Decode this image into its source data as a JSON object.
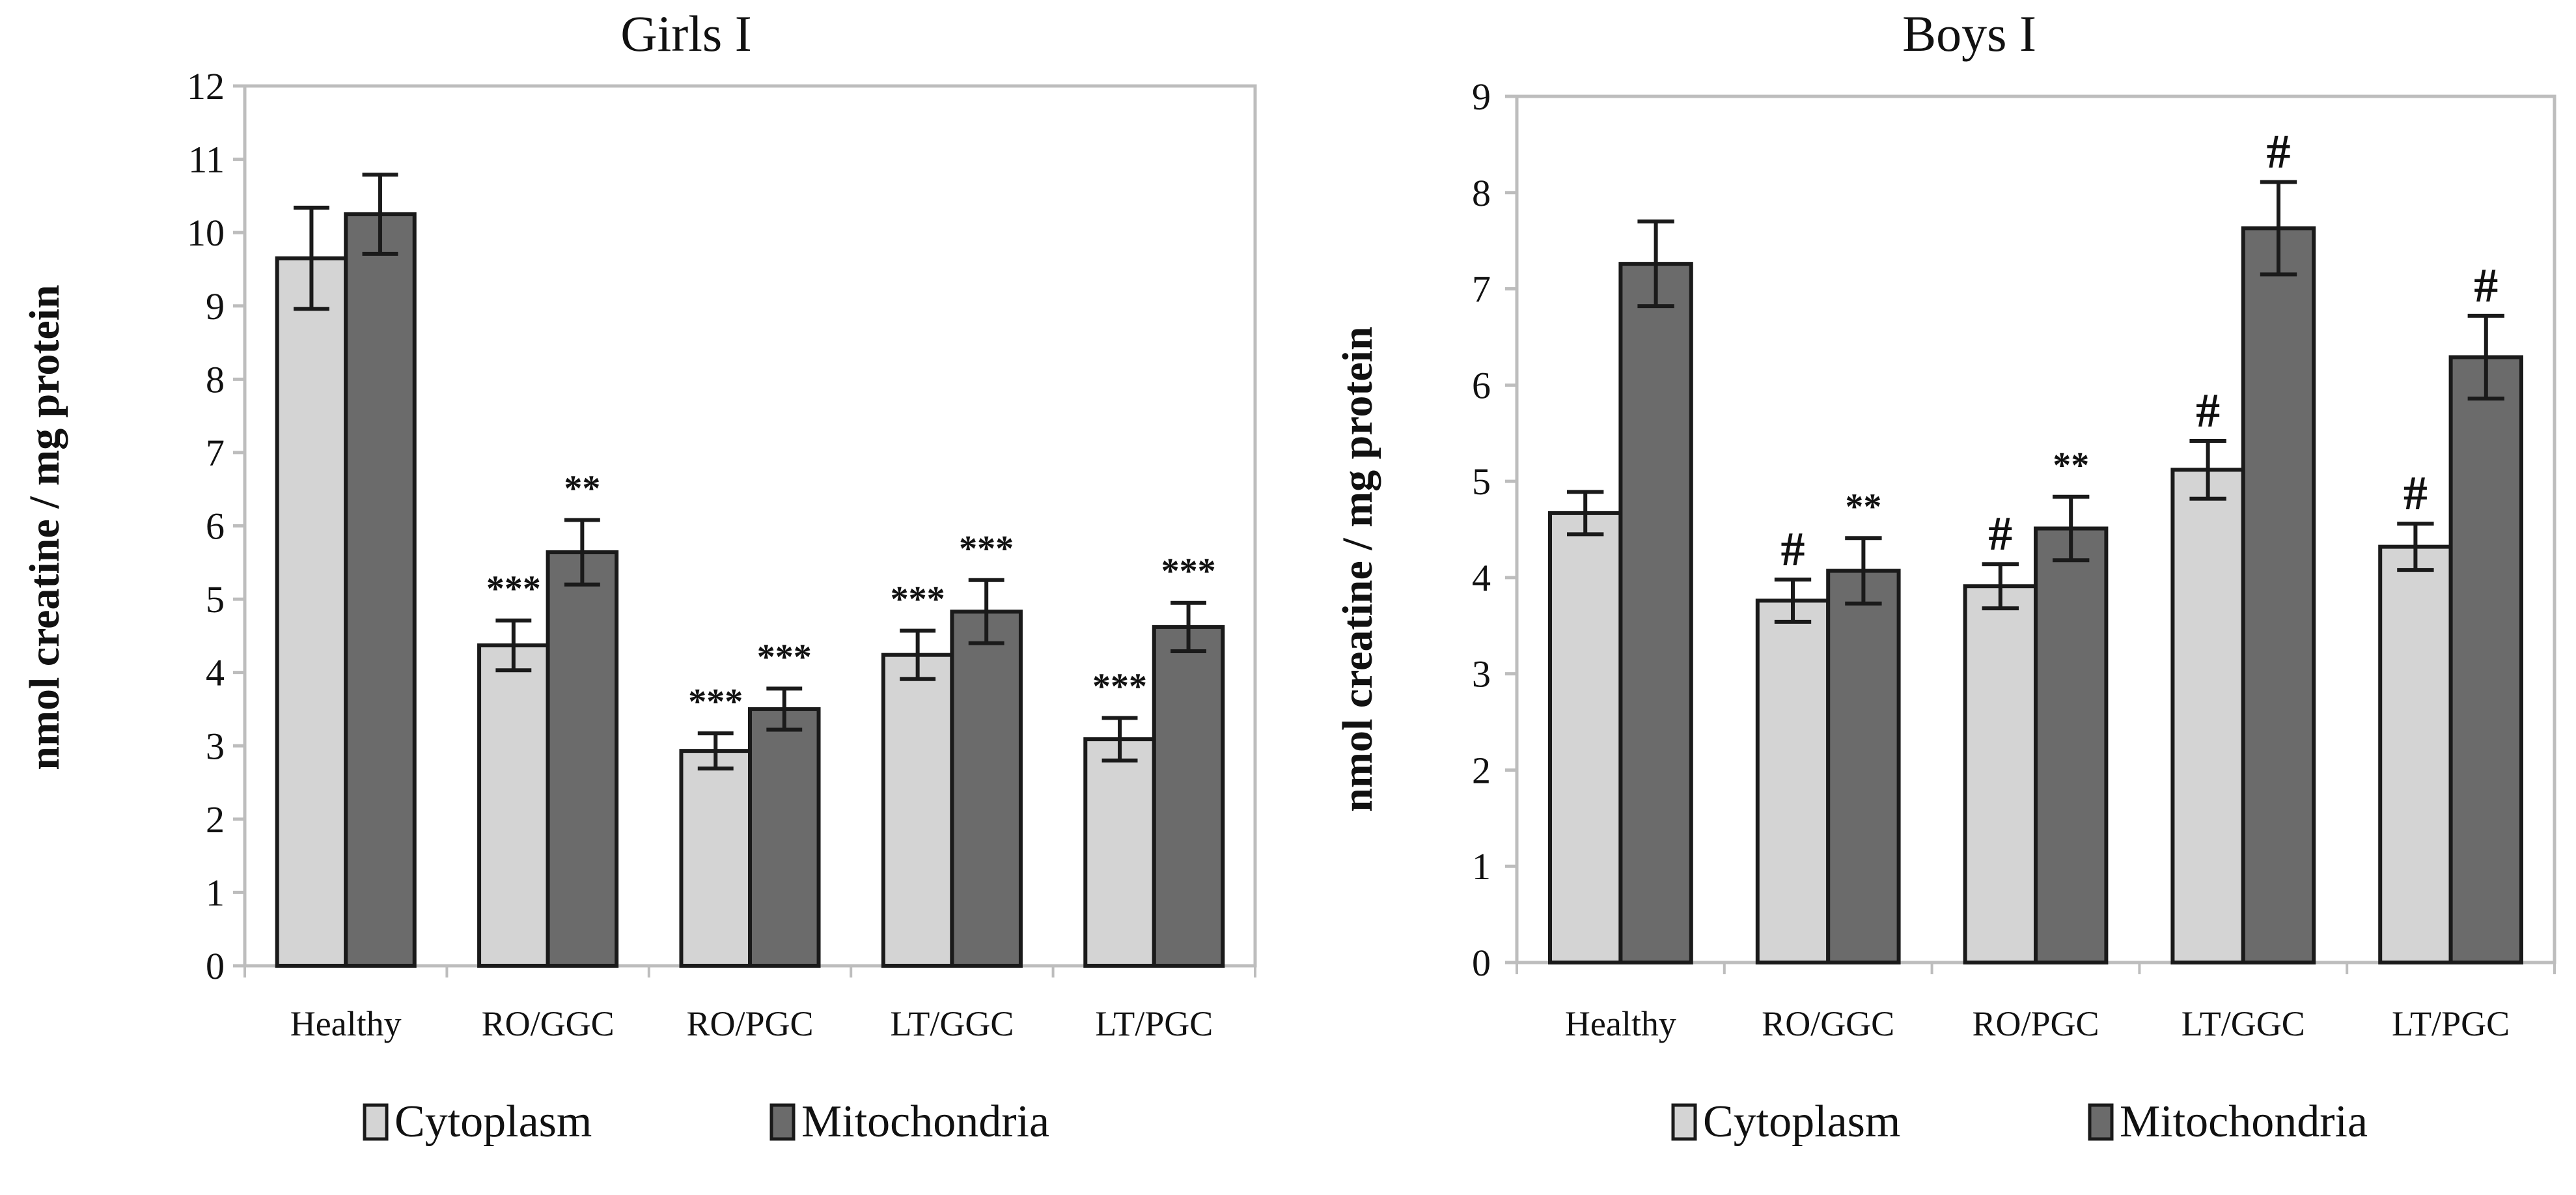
{
  "chart_data": [
    {
      "type": "bar",
      "title": "Girls I",
      "xlabel": "",
      "ylabel": "nmol creatine / mg protein",
      "ylim": [
        0,
        12
      ],
      "yticks": [
        0,
        1,
        2,
        3,
        4,
        5,
        6,
        7,
        8,
        9,
        10,
        11,
        12
      ],
      "grid": false,
      "legend": "bottom",
      "categories": [
        "Healthy",
        "RO/GGC",
        "RO/PGC",
        "LT/GGC",
        "LT/PGC"
      ],
      "series": [
        {
          "name": "Cytoplasm",
          "color": "#d4d4d4",
          "values": [
            9.65,
            4.37,
            2.93,
            4.24,
            3.09
          ],
          "error": [
            0.69,
            0.34,
            0.24,
            0.33,
            0.29
          ],
          "annotations": [
            "",
            "***",
            "***",
            "***",
            "***"
          ]
        },
        {
          "name": "Mitochondria",
          "color": "#6b6b6b",
          "values": [
            10.25,
            5.64,
            3.5,
            4.83,
            4.62
          ],
          "error": [
            0.54,
            0.44,
            0.28,
            0.43,
            0.33
          ],
          "annotations": [
            "",
            "**",
            "***",
            "***",
            "***"
          ]
        }
      ]
    },
    {
      "type": "bar",
      "title": "Boys I",
      "xlabel": "",
      "ylabel": "nmol creatine / mg protein",
      "ylim": [
        0,
        9
      ],
      "yticks": [
        0,
        1,
        2,
        3,
        4,
        5,
        6,
        7,
        8,
        9
      ],
      "grid": false,
      "legend": "bottom",
      "categories": [
        "Healthy",
        "RO/GGC",
        "RO/PGC",
        "LT/GGC",
        "LT/PGC"
      ],
      "series": [
        {
          "name": "Cytoplasm",
          "color": "#d4d4d4",
          "values": [
            4.67,
            3.76,
            3.91,
            5.12,
            4.32
          ],
          "error": [
            0.22,
            0.22,
            0.23,
            0.3,
            0.24
          ],
          "annotations": [
            "",
            "#",
            "#",
            "#",
            "#"
          ]
        },
        {
          "name": "Mitochondria",
          "color": "#6b6b6b",
          "values": [
            7.26,
            4.07,
            4.51,
            7.63,
            6.29
          ],
          "error": [
            0.44,
            0.34,
            0.33,
            0.48,
            0.43
          ],
          "annotations": [
            "",
            "**",
            "**",
            "#",
            "#"
          ]
        }
      ]
    }
  ]
}
